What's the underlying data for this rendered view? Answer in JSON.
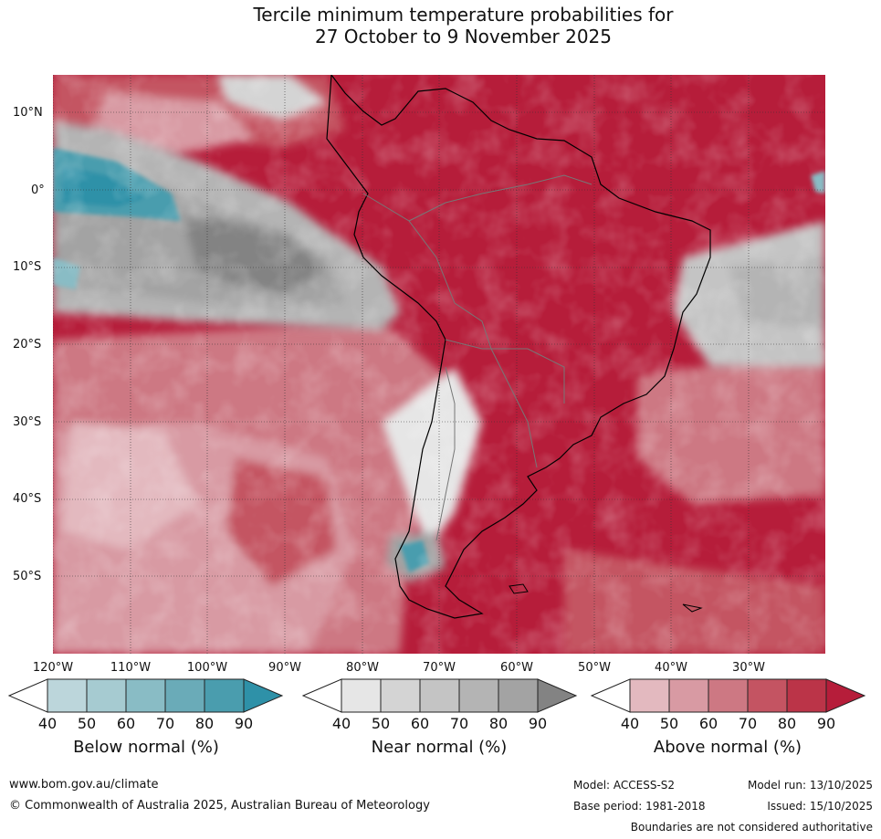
{
  "title": {
    "line1": "Tercile minimum temperature probabilities for",
    "line2": "27 October to 9 November 2025"
  },
  "map": {
    "region": "South America",
    "lat_labels": [
      "10°N",
      "0°",
      "10°S",
      "20°S",
      "30°S",
      "40°S",
      "50°S"
    ],
    "lon_labels": [
      "120°W",
      "110°W",
      "100°W",
      "90°W",
      "80°W",
      "70°W",
      "60°W",
      "50°W",
      "40°W",
      "30°W"
    ],
    "colors": {
      "above_dominant": "#b61d3a",
      "near_gray": "#a3a3a3",
      "below_blue": "#2e91a8"
    }
  },
  "legend": {
    "tick_values": [
      "40",
      "50",
      "60",
      "70",
      "80",
      "90"
    ],
    "below": {
      "title": "Below normal (%)",
      "colors": [
        "#bcd6db",
        "#a6cbd1",
        "#89bcc5",
        "#6aabb8",
        "#4a9dae",
        "#2e91a8"
      ]
    },
    "near": {
      "title": "Near normal (%)",
      "colors": [
        "#e6e6e6",
        "#d4d4d4",
        "#c4c4c4",
        "#b4b4b4",
        "#a3a3a3",
        "#838383"
      ]
    },
    "above": {
      "title": "Above normal (%)",
      "colors": [
        "#e3b9bf",
        "#d89aa3",
        "#cd7883",
        "#c45462",
        "#bb3448",
        "#b61d3a"
      ]
    }
  },
  "footer": {
    "url": "www.bom.gov.au/climate",
    "copyright": "© Commonwealth of Australia 2025, Australian Bureau of Meteorology",
    "model": "Model: ACCESS-S2",
    "base_period": "Base period: 1981-2018",
    "model_run": "Model run: 13/10/2025",
    "issued": "Issued: 15/10/2025",
    "disclaimer": "Boundaries are not considered authoritative"
  }
}
